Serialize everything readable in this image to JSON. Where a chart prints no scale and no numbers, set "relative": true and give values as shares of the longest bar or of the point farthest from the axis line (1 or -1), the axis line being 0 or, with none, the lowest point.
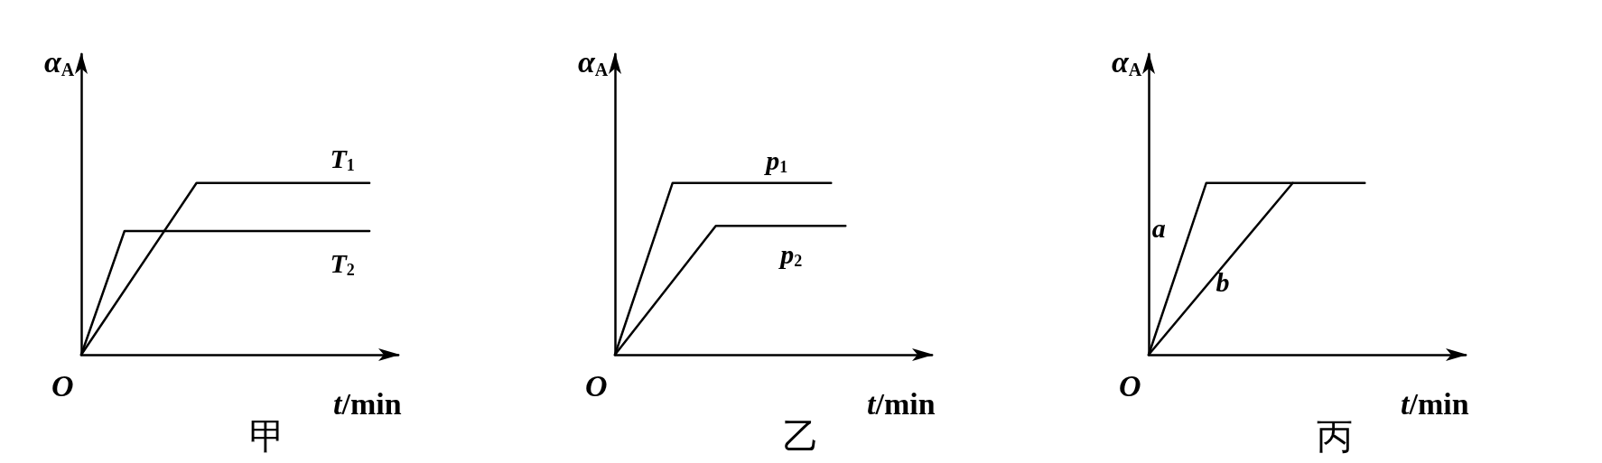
{
  "chart_data": [
    {
      "type": "line",
      "title": "甲",
      "xlabel": "t/min",
      "ylabel": "α$_{A}$",
      "annotations": [
        "O"
      ],
      "relative": true,
      "categories": [
        null,
        null,
        null,
        null,
        null,
        null,
        null,
        null,
        null,
        null,
        null,
        null,
        null,
        null,
        null,
        null,
        null,
        null,
        null,
        null,
        null
      ],
      "tick_labels": false,
      "grid": false,
      "legend": false,
      "marker": "none",
      "line_style": "solid",
      "series": [
        {
          "name": "T$_{1}$",
          "color": "#000000",
          "values": [
            0,
            null,
            null,
            null,
            null,
            null,
            null,
            null,
            1,
            null,
            null,
            null,
            null,
            null,
            null,
            null,
            null,
            null,
            null,
            null,
            1
          ]
        },
        {
          "name": "T$_{2}$",
          "color": "#000000",
          "values": [
            0,
            null,
            null,
            0.72,
            null,
            null,
            null,
            null,
            null,
            null,
            null,
            null,
            null,
            null,
            null,
            null,
            null,
            null,
            null,
            null,
            0.72
          ]
        }
      ]
    },
    {
      "type": "line",
      "title": "乙",
      "xlabel": "t/min",
      "ylabel": "α$_{A}$",
      "annotations": [
        "O"
      ],
      "relative": true,
      "categories": [
        null,
        null,
        null,
        null,
        null,
        null,
        null,
        null,
        null,
        null,
        null,
        null,
        null,
        null,
        null,
        null,
        null,
        null,
        null,
        null,
        null
      ],
      "tick_labels": false,
      "grid": false,
      "legend": false,
      "marker": "none",
      "line_style": "solid",
      "series": [
        {
          "name": "p$_{1}$",
          "color": "#000000",
          "values": [
            0,
            null,
            null,
            null,
            1,
            null,
            null,
            null,
            null,
            null,
            null,
            null,
            null,
            null,
            null,
            1,
            null,
            null,
            null,
            null,
            null
          ]
        },
        {
          "name": "p$_{2}$",
          "color": "#000000",
          "values": [
            0,
            null,
            null,
            null,
            null,
            null,
            null,
            0.75,
            null,
            null,
            null,
            null,
            null,
            null,
            null,
            null,
            0.75,
            null,
            null,
            null,
            null
          ]
        }
      ]
    },
    {
      "type": "line",
      "title": "丙",
      "xlabel": "t/min",
      "ylabel": "α$_{A}$",
      "annotations": [
        "O"
      ],
      "relative": true,
      "categories": [
        null,
        null,
        null,
        null,
        null,
        null,
        null,
        null,
        null,
        null,
        null,
        null,
        null,
        null,
        null,
        null,
        null,
        null,
        null,
        null,
        null
      ],
      "tick_labels": false,
      "grid": false,
      "legend": false,
      "marker": "none",
      "line_style": "solid",
      "series": [
        {
          "name": "a",
          "color": "#000000",
          "values": [
            0,
            null,
            null,
            null,
            1,
            null,
            null,
            null,
            null,
            null,
            null,
            null,
            null,
            null,
            null,
            1,
            null,
            null,
            null,
            null,
            null
          ]
        },
        {
          "name": "b",
          "color": "#000000",
          "values": [
            0,
            null,
            null,
            null,
            null,
            null,
            null,
            null,
            null,
            null,
            1,
            null,
            null,
            null,
            null,
            null,
            null,
            null,
            null,
            null,
            null
          ]
        }
      ]
    }
  ]
}
